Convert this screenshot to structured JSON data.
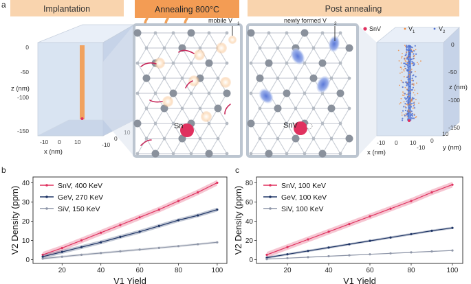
{
  "panel_labels": {
    "a": "a",
    "b": "b",
    "c": "c"
  },
  "stages": {
    "implantation": "Implantation",
    "annealing": "Annealing 800°C",
    "post": "Post annealing"
  },
  "annotations": {
    "mobile_v1": "mobile V",
    "mobile_v1_sub": "1",
    "newly_v2": "newly formed V",
    "newly_v2_sub": "2",
    "sn_label": "Sn",
    "snv_label": "SnV"
  },
  "left_cube": {
    "z_label": "z (nm)",
    "x_label": "x (nm)",
    "z_ticks": [
      "0",
      "-50",
      "-100",
      "-150"
    ],
    "x_ticks": [
      "-10",
      "0",
      "10"
    ],
    "y_ticks": [
      "-10",
      "0",
      "10"
    ]
  },
  "right_cube": {
    "z_label": "z (nm)",
    "x_label": "x (nm)",
    "y_label": "y (nm)",
    "z_ticks": [
      "0",
      "-50",
      "-100",
      "-150"
    ],
    "x_ticks": [
      "-10",
      "0",
      "10"
    ],
    "y_ticks": [
      "-10",
      "0",
      "10"
    ],
    "legend": {
      "snv": "SnV",
      "v1": "V",
      "v1_sub": "1",
      "v2": "V",
      "v2_sub": "2"
    }
  },
  "colors": {
    "orange_header": "#f7c99e",
    "orange_header_dark": "#f0a15a",
    "snv": "#e0315f",
    "gev": "#1f3566",
    "siv": "#8e96a8",
    "cube": "#d8e3f2",
    "frame": "#c0c8d2"
  },
  "chart_data": [
    {
      "type": "line",
      "panel": "b",
      "xlabel": "V1 Yield",
      "ylabel": "V2 Density (ppm)",
      "xlim": [
        5,
        105
      ],
      "ylim": [
        -2,
        43
      ],
      "xticks": [
        20,
        40,
        60,
        80,
        100
      ],
      "yticks": [
        0,
        10,
        20,
        30,
        40
      ],
      "legend_position": "top-left",
      "x": [
        10,
        20,
        30,
        40,
        50,
        60,
        70,
        80,
        90,
        100
      ],
      "series": [
        {
          "name": "SnV, 400 KeV",
          "values": [
            2.5,
            6,
            10,
            14,
            18,
            22,
            26,
            30.5,
            35,
            40
          ],
          "band": 1.5
        },
        {
          "name": "GeV, 270 KeV",
          "values": [
            1.5,
            4,
            6.5,
            9,
            11.8,
            14.5,
            17.5,
            20.5,
            23,
            26
          ],
          "band": 1.0
        },
        {
          "name": "SiV, 150 KeV",
          "values": [
            0.5,
            1.5,
            2.5,
            3.4,
            4.3,
            5.2,
            6.1,
            7,
            8,
            9
          ],
          "band": 0.6
        }
      ]
    },
    {
      "type": "line",
      "panel": "c",
      "xlabel": "V1 Yield",
      "ylabel": "V2 Density (ppm)",
      "xlim": [
        5,
        105
      ],
      "ylim": [
        -4,
        86
      ],
      "xticks": [
        20,
        40,
        60,
        80,
        100
      ],
      "yticks": [
        0,
        20,
        40,
        60,
        80
      ],
      "legend_position": "top-left",
      "x": [
        10,
        20,
        30,
        40,
        50,
        60,
        70,
        80,
        90,
        100
      ],
      "series": [
        {
          "name": "SnV, 100 KeV",
          "values": [
            5,
            13,
            21,
            29,
            37,
            45,
            53,
            61,
            70,
            78
          ],
          "band": 3
        },
        {
          "name": "GeV, 100 KeV",
          "values": [
            2,
            5.5,
            9,
            12.5,
            16,
            19.5,
            23,
            26.5,
            30,
            33
          ],
          "band": 1.2
        },
        {
          "name": "SiV, 100 KeV",
          "values": [
            0.5,
            1.5,
            2.5,
            3.5,
            4.5,
            5.5,
            6.5,
            7.5,
            8.5,
            9.5
          ],
          "band": 0.5
        }
      ]
    }
  ]
}
